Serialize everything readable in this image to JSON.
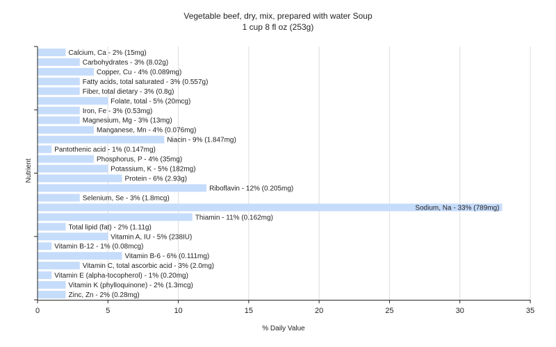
{
  "chart_data": {
    "type": "bar",
    "orientation": "horizontal",
    "title": "Vegetable beef, dry, mix, prepared with water Soup",
    "subtitle": "1 cup 8 fl oz (253g)",
    "xlabel": "% Daily Value",
    "ylabel": "Nutrient",
    "xlim": [
      0,
      35
    ],
    "xticks": [
      0,
      5,
      10,
      15,
      20,
      25,
      30,
      35
    ],
    "grid": true,
    "bar_color": "#c6dcfb",
    "categories": [
      "Calcium, Ca - 2% (15mg)",
      "Carbohydrates - 3% (8.02g)",
      "Copper, Cu - 4% (0.089mg)",
      "Fatty acids, total saturated - 3% (0.557g)",
      "Fiber, total dietary - 3% (0.8g)",
      "Folate, total - 5% (20mcg)",
      "Iron, Fe - 3% (0.53mg)",
      "Magnesium, Mg - 3% (13mg)",
      "Manganese, Mn - 4% (0.076mg)",
      "Niacin - 9% (1.847mg)",
      "Pantothenic acid - 1% (0.147mg)",
      "Phosphorus, P - 4% (35mg)",
      "Potassium, K - 5% (182mg)",
      "Protein - 6% (2.93g)",
      "Riboflavin - 12% (0.205mg)",
      "Selenium, Se - 3% (1.8mcg)",
      "Sodium, Na - 33% (789mg)",
      "Thiamin - 11% (0.162mg)",
      "Total lipid (fat) - 2% (1.11g)",
      "Vitamin A, IU - 5% (238IU)",
      "Vitamin B-12 - 1% (0.08mcg)",
      "Vitamin B-6 - 6% (0.111mg)",
      "Vitamin C, total ascorbic acid - 3% (2.0mg)",
      "Vitamin E (alpha-tocopherol) - 1% (0.20mg)",
      "Vitamin K (phylloquinone) - 2% (1.3mcg)",
      "Zinc, Zn - 2% (0.28mg)"
    ],
    "values": [
      2,
      3,
      4,
      3,
      3,
      5,
      3,
      3,
      4,
      9,
      1,
      4,
      5,
      6,
      12,
      3,
      33,
      11,
      2,
      5,
      1,
      6,
      3,
      1,
      2,
      2
    ]
  }
}
